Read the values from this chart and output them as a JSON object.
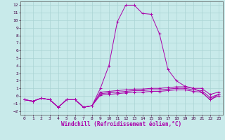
{
  "xlabel": "Windchill (Refroidissement éolien,°C)",
  "background_color": "#c8eaea",
  "grid_color": "#aad4d4",
  "line_color": "#aa00aa",
  "xlim": [
    -0.5,
    23.5
  ],
  "ylim": [
    -2.5,
    12.5
  ],
  "xticks": [
    0,
    1,
    2,
    3,
    4,
    5,
    6,
    7,
    8,
    9,
    10,
    11,
    12,
    13,
    14,
    15,
    16,
    17,
    18,
    19,
    20,
    21,
    22,
    23
  ],
  "yticks": [
    -2,
    -1,
    0,
    1,
    2,
    3,
    4,
    5,
    6,
    7,
    8,
    9,
    10,
    11,
    12
  ],
  "lines": [
    {
      "x": [
        0,
        1,
        2,
        3,
        4,
        5,
        6,
        7,
        8,
        9,
        10,
        11,
        12,
        13,
        14,
        15,
        16,
        17,
        18,
        19,
        20,
        21,
        22,
        23
      ],
      "y": [
        -0.5,
        -0.7,
        -0.3,
        -0.5,
        -1.5,
        -0.5,
        -0.5,
        -1.5,
        -1.3,
        1.0,
        4.0,
        9.8,
        12.0,
        12.0,
        10.9,
        10.8,
        8.2,
        3.5,
        2.0,
        1.3,
        1.0,
        0.5,
        -0.5,
        0.2
      ]
    },
    {
      "x": [
        0,
        1,
        2,
        3,
        4,
        5,
        6,
        7,
        8,
        9,
        10,
        11,
        12,
        13,
        14,
        15,
        16,
        17,
        18,
        19,
        20,
        21,
        22,
        23
      ],
      "y": [
        -0.5,
        -0.7,
        -0.3,
        -0.5,
        -1.5,
        -0.5,
        -0.5,
        -1.5,
        -1.3,
        0.5,
        0.6,
        0.7,
        0.8,
        0.9,
        0.9,
        1.0,
        1.0,
        1.1,
        1.2,
        1.2,
        1.0,
        1.0,
        0.2,
        0.5
      ]
    },
    {
      "x": [
        0,
        1,
        2,
        3,
        4,
        5,
        6,
        7,
        8,
        9,
        10,
        11,
        12,
        13,
        14,
        15,
        16,
        17,
        18,
        19,
        20,
        21,
        22,
        23
      ],
      "y": [
        -0.5,
        -0.7,
        -0.3,
        -0.5,
        -1.5,
        -0.5,
        -0.5,
        -1.5,
        -1.3,
        0.3,
        0.4,
        0.5,
        0.6,
        0.7,
        0.7,
        0.8,
        0.8,
        0.9,
        1.0,
        1.0,
        0.8,
        0.7,
        -0.2,
        0.2
      ]
    },
    {
      "x": [
        0,
        1,
        2,
        3,
        4,
        5,
        6,
        7,
        8,
        9,
        10,
        11,
        12,
        13,
        14,
        15,
        16,
        17,
        18,
        19,
        20,
        21,
        22,
        23
      ],
      "y": [
        -0.5,
        -0.7,
        -0.3,
        -0.5,
        -1.5,
        -0.5,
        -0.5,
        -1.5,
        -1.3,
        0.1,
        0.2,
        0.3,
        0.4,
        0.5,
        0.5,
        0.6,
        0.6,
        0.7,
        0.8,
        0.8,
        0.6,
        0.5,
        -0.5,
        0.0
      ]
    }
  ],
  "tick_fontsize": 4.5,
  "xlabel_fontsize": 5.5,
  "marker": "+"
}
